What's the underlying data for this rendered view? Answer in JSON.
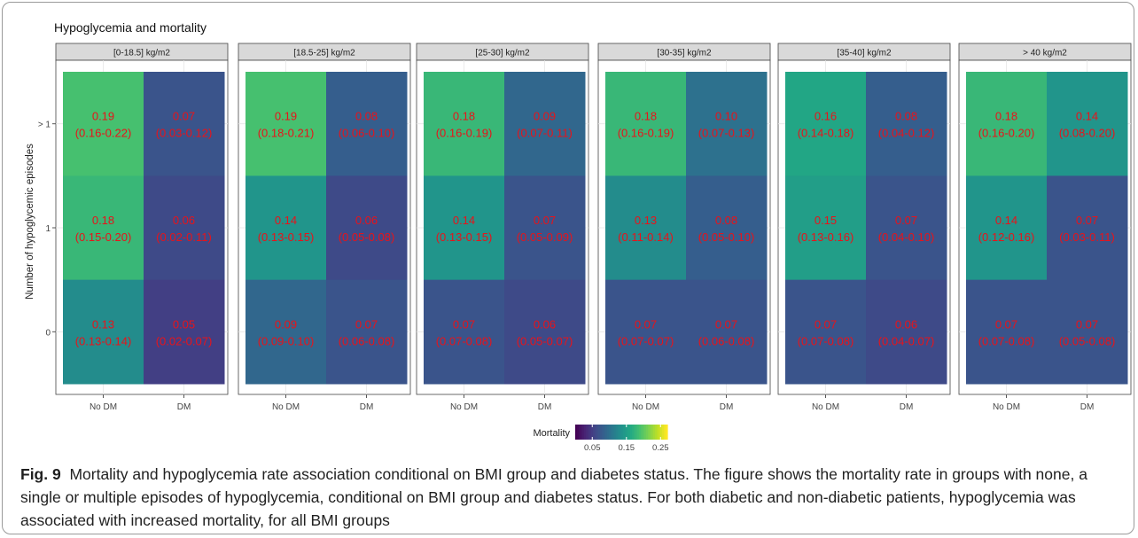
{
  "chart_data": {
    "type": "heatmap",
    "title": "Hypoglycemia and mortality",
    "ylabel": "Number of hypoglycemic episodes",
    "x_categories": [
      "No DM",
      "DM"
    ],
    "y_categories": [
      "0",
      "1",
      "> 1"
    ],
    "panels": [
      {
        "label": "[0-18.5] kg/m2",
        "cells": [
          {
            "x": "No DM",
            "y": "> 1",
            "value": 0.19,
            "label": "0.19",
            "ci": "(0.16-0.22)"
          },
          {
            "x": "DM",
            "y": "> 1",
            "value": 0.07,
            "label": "0.07",
            "ci": "(0.03-0.12)"
          },
          {
            "x": "No DM",
            "y": "1",
            "value": 0.18,
            "label": "0.18",
            "ci": "(0.15-0.20)"
          },
          {
            "x": "DM",
            "y": "1",
            "value": 0.06,
            "label": "0.06",
            "ci": "(0.02-0.11)"
          },
          {
            "x": "No DM",
            "y": "0",
            "value": 0.13,
            "label": "0.13",
            "ci": "(0.13-0.14)"
          },
          {
            "x": "DM",
            "y": "0",
            "value": 0.05,
            "label": "0.05",
            "ci": "(0.02-0.07)"
          }
        ]
      },
      {
        "label": "[18.5-25] kg/m2",
        "cells": [
          {
            "x": "No DM",
            "y": "> 1",
            "value": 0.19,
            "label": "0.19",
            "ci": "(0.18-0.21)"
          },
          {
            "x": "DM",
            "y": "> 1",
            "value": 0.08,
            "label": "0.08",
            "ci": "(0.06-0.10)"
          },
          {
            "x": "No DM",
            "y": "1",
            "value": 0.14,
            "label": "0.14",
            "ci": "(0.13-0.15)"
          },
          {
            "x": "DM",
            "y": "1",
            "value": 0.06,
            "label": "0.06",
            "ci": "(0.05-0.08)"
          },
          {
            "x": "No DM",
            "y": "0",
            "value": 0.09,
            "label": "0.09",
            "ci": "(0.09-0.10)"
          },
          {
            "x": "DM",
            "y": "0",
            "value": 0.07,
            "label": "0.07",
            "ci": "(0.06-0.08)"
          }
        ]
      },
      {
        "label": "[25-30] kg/m2",
        "cells": [
          {
            "x": "No DM",
            "y": "> 1",
            "value": 0.18,
            "label": "0.18",
            "ci": "(0.16-0.19)"
          },
          {
            "x": "DM",
            "y": "> 1",
            "value": 0.09,
            "label": "0.09",
            "ci": "(0.07-0.11)"
          },
          {
            "x": "No DM",
            "y": "1",
            "value": 0.14,
            "label": "0.14",
            "ci": "(0.13-0.15)"
          },
          {
            "x": "DM",
            "y": "1",
            "value": 0.07,
            "label": "0.07",
            "ci": "(0.05-0.09)"
          },
          {
            "x": "No DM",
            "y": "0",
            "value": 0.07,
            "label": "0.07",
            "ci": "(0.07-0.08)"
          },
          {
            "x": "DM",
            "y": "0",
            "value": 0.06,
            "label": "0.06",
            "ci": "(0.05-0.07)"
          }
        ]
      },
      {
        "label": "[30-35] kg/m2",
        "cells": [
          {
            "x": "No DM",
            "y": "> 1",
            "value": 0.18,
            "label": "0.18",
            "ci": "(0.16-0.19)"
          },
          {
            "x": "DM",
            "y": "> 1",
            "value": 0.1,
            "label": "0.10",
            "ci": "(0.07-0.13)"
          },
          {
            "x": "No DM",
            "y": "1",
            "value": 0.13,
            "label": "0.13",
            "ci": "(0.11-0.14)"
          },
          {
            "x": "DM",
            "y": "1",
            "value": 0.08,
            "label": "0.08",
            "ci": "(0.05-0.10)"
          },
          {
            "x": "No DM",
            "y": "0",
            "value": 0.07,
            "label": "0.07",
            "ci": "(0.07-0.07)"
          },
          {
            "x": "DM",
            "y": "0",
            "value": 0.07,
            "label": "0.07",
            "ci": "(0.06-0.08)"
          }
        ]
      },
      {
        "label": "[35-40] kg/m2",
        "cells": [
          {
            "x": "No DM",
            "y": "> 1",
            "value": 0.16,
            "label": "0.16",
            "ci": "(0.14-0.18)"
          },
          {
            "x": "DM",
            "y": "> 1",
            "value": 0.08,
            "label": "0.08",
            "ci": "(0.04-0.12)"
          },
          {
            "x": "No DM",
            "y": "1",
            "value": 0.15,
            "label": "0.15",
            "ci": "(0.13-0.16)"
          },
          {
            "x": "DM",
            "y": "1",
            "value": 0.07,
            "label": "0.07",
            "ci": "(0.04-0.10)"
          },
          {
            "x": "No DM",
            "y": "0",
            "value": 0.07,
            "label": "0.07",
            "ci": "(0.07-0.08)"
          },
          {
            "x": "DM",
            "y": "0",
            "value": 0.06,
            "label": "0.06",
            "ci": "(0.04-0.07)"
          }
        ]
      },
      {
        "label": "> 40 kg/m2",
        "cells": [
          {
            "x": "No DM",
            "y": "> 1",
            "value": 0.18,
            "label": "0.18",
            "ci": "(0.16-0.20)"
          },
          {
            "x": "DM",
            "y": "> 1",
            "value": 0.14,
            "label": "0.14",
            "ci": "(0.08-0.20)"
          },
          {
            "x": "No DM",
            "y": "1",
            "value": 0.14,
            "label": "0.14",
            "ci": "(0.12-0.16)"
          },
          {
            "x": "DM",
            "y": "1",
            "value": 0.07,
            "label": "0.07",
            "ci": "(0.03-0.11)"
          },
          {
            "x": "No DM",
            "y": "0",
            "value": 0.07,
            "label": "0.07",
            "ci": "(0.07-0.08)"
          },
          {
            "x": "DM",
            "y": "0",
            "value": 0.07,
            "label": "0.07",
            "ci": "(0.05-0.08)"
          }
        ]
      }
    ],
    "legend": {
      "title": "Mortality",
      "ticks": [
        "0.05",
        "0.15",
        "0.25"
      ],
      "tick_values": [
        0.05,
        0.15,
        0.25
      ],
      "range": [
        0.0,
        0.27
      ],
      "placement": "bottom",
      "colormap": "viridis"
    },
    "grid": true,
    "cell_text_color": "#e8131a",
    "strip_color": "#d9d9d9"
  },
  "caption": {
    "label": "Fig. 9",
    "text": "Mortality and hypoglycemia rate association conditional on BMI group and diabetes status. The figure shows the mortality rate in groups with none, a single or multiple episodes of hypoglycemia, conditional on BMI group and diabetes status. For both diabetic and non-diabetic patients, hypoglycemia was associated with increased mortality, for all BMI groups"
  }
}
